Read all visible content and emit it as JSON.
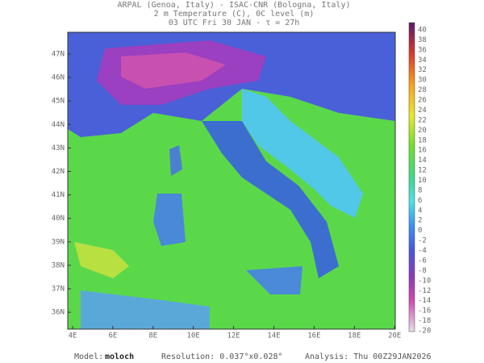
{
  "header": {
    "line1": "ARPAL (Genoa, Italy)  -  ISAC-CNR (Bologna, Italy)",
    "line2": "2 m Temperature (C), 0C level (m)",
    "line3": "03 UTC Fri 30 JAN  -  τ = 27h"
  },
  "map": {
    "lat_labels": [
      "47N",
      "46N",
      "45N",
      "44N",
      "43N",
      "42N",
      "41N",
      "40N",
      "39N",
      "38N",
      "37N",
      "36N"
    ],
    "lon_labels": [
      "4E",
      "6E",
      "8E",
      "10E",
      "12E",
      "14E",
      "16E",
      "18E",
      "20E"
    ]
  },
  "colorbar": {
    "labels": [
      40,
      38,
      36,
      34,
      32,
      30,
      28,
      26,
      24,
      22,
      20,
      18,
      16,
      14,
      12,
      10,
      8,
      6,
      4,
      2,
      0,
      -2,
      -4,
      -6,
      -8,
      -10,
      -12,
      -14,
      -16,
      -18,
      -20
    ]
  },
  "footer": {
    "model_label": "Model:",
    "model_value": "moloch",
    "resolution": "Resolution: 0.037°x0.028°",
    "analysis": "Analysis: Thu 00Z29JAN2026"
  }
}
